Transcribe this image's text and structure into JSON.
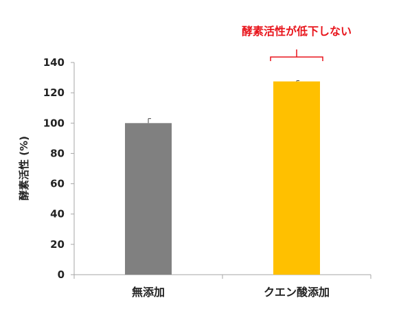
{
  "chart_data": {
    "type": "bar",
    "categories": [
      "無添加",
      "クエン酸添加"
    ],
    "values": [
      100,
      127.5
    ],
    "errors": [
      3,
      0.5
    ],
    "colors": [
      "#808080",
      "#ffc000"
    ],
    "ylabel": "酵素活性 (%)",
    "xlabel": "",
    "ylim": [
      0,
      140
    ],
    "yticks": [
      0,
      20,
      40,
      60,
      80,
      100,
      120,
      140
    ],
    "grid": false,
    "annotation": {
      "text": "酵素活性が低下しない",
      "color": "#e8141b",
      "target_category": "クエン酸添加"
    }
  }
}
